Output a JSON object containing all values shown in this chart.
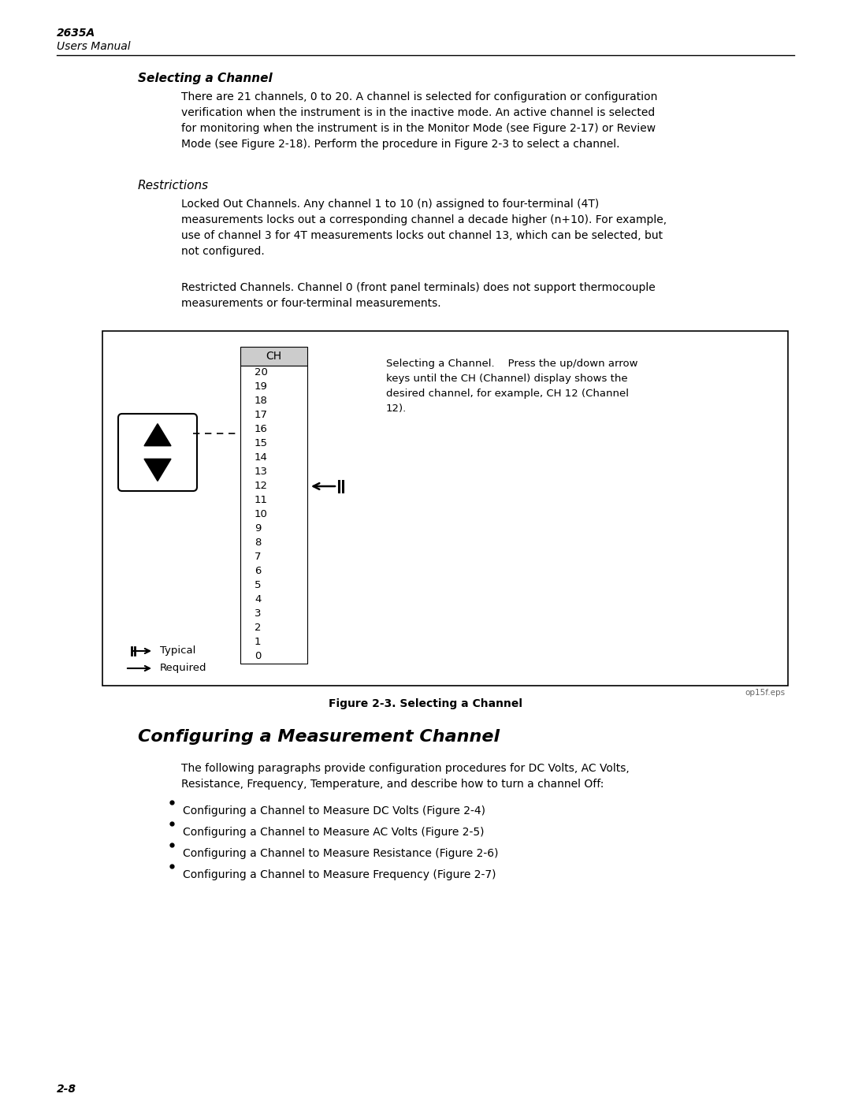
{
  "bg_color": "#ffffff",
  "header_model": "2635A",
  "header_subtitle": "Users Manual",
  "page_number": "2-8",
  "section_title": "Selecting a Channel",
  "section_body": "There are 21 channels, 0 to 20. A channel is selected for configuration or configuration\nverification when the instrument is in the inactive mode. An active channel is selected\nfor monitoring when the instrument is in the Monitor Mode (see Figure 2-17) or Review\nMode (see Figure 2-18). Perform the procedure in Figure 2-3 to select a channel.",
  "restrictions_title": "Restrictions",
  "restrictions_p1": "Locked Out Channels. Any channel 1 to 10 (n) assigned to four-terminal (4T)\nmeasurements locks out a corresponding channel a decade higher (n+10). For example,\nuse of channel 3 for 4T measurements locks out channel 13, which can be selected, but\nnot configured.",
  "restrictions_p2": "Restricted Channels. Channel 0 (front panel terminals) does not support thermocouple\nmeasurements or four-terminal measurements.",
  "figure_caption": "Figure 2-3. Selecting a Channel",
  "figure_label": "op15f.eps",
  "diagram_ch_label": "CH",
  "diagram_channels": [
    "20",
    "19",
    "18",
    "17",
    "16",
    "15",
    "14",
    "13",
    "12",
    "11",
    "10",
    "9",
    "8",
    "7",
    "6",
    "5",
    "4",
    "3",
    "2",
    "1",
    "0"
  ],
  "diagram_annotation": "Selecting a Channel.    Press the up/down arrow\nkeys until the CH (Channel) display shows the\ndesired channel, for example, CH 12 (Channel\n12).",
  "typical_label": "Typical",
  "required_label": "Required",
  "section2_title": "Configuring a Measurement Channel",
  "section2_body": "The following paragraphs provide configuration procedures for DC Volts, AC Volts,\nResistance, Frequency, Temperature, and describe how to turn a channel Off:",
  "bullet1": "Configuring a Channel to Measure DC Volts (Figure 2-4)",
  "bullet2": "Configuring a Channel to Measure AC Volts (Figure 2-5)",
  "bullet3": "Configuring a Channel to Measure Resistance (Figure 2-6)",
  "bullet4": "Configuring a Channel to Measure Frequency (Figure 2-7)"
}
